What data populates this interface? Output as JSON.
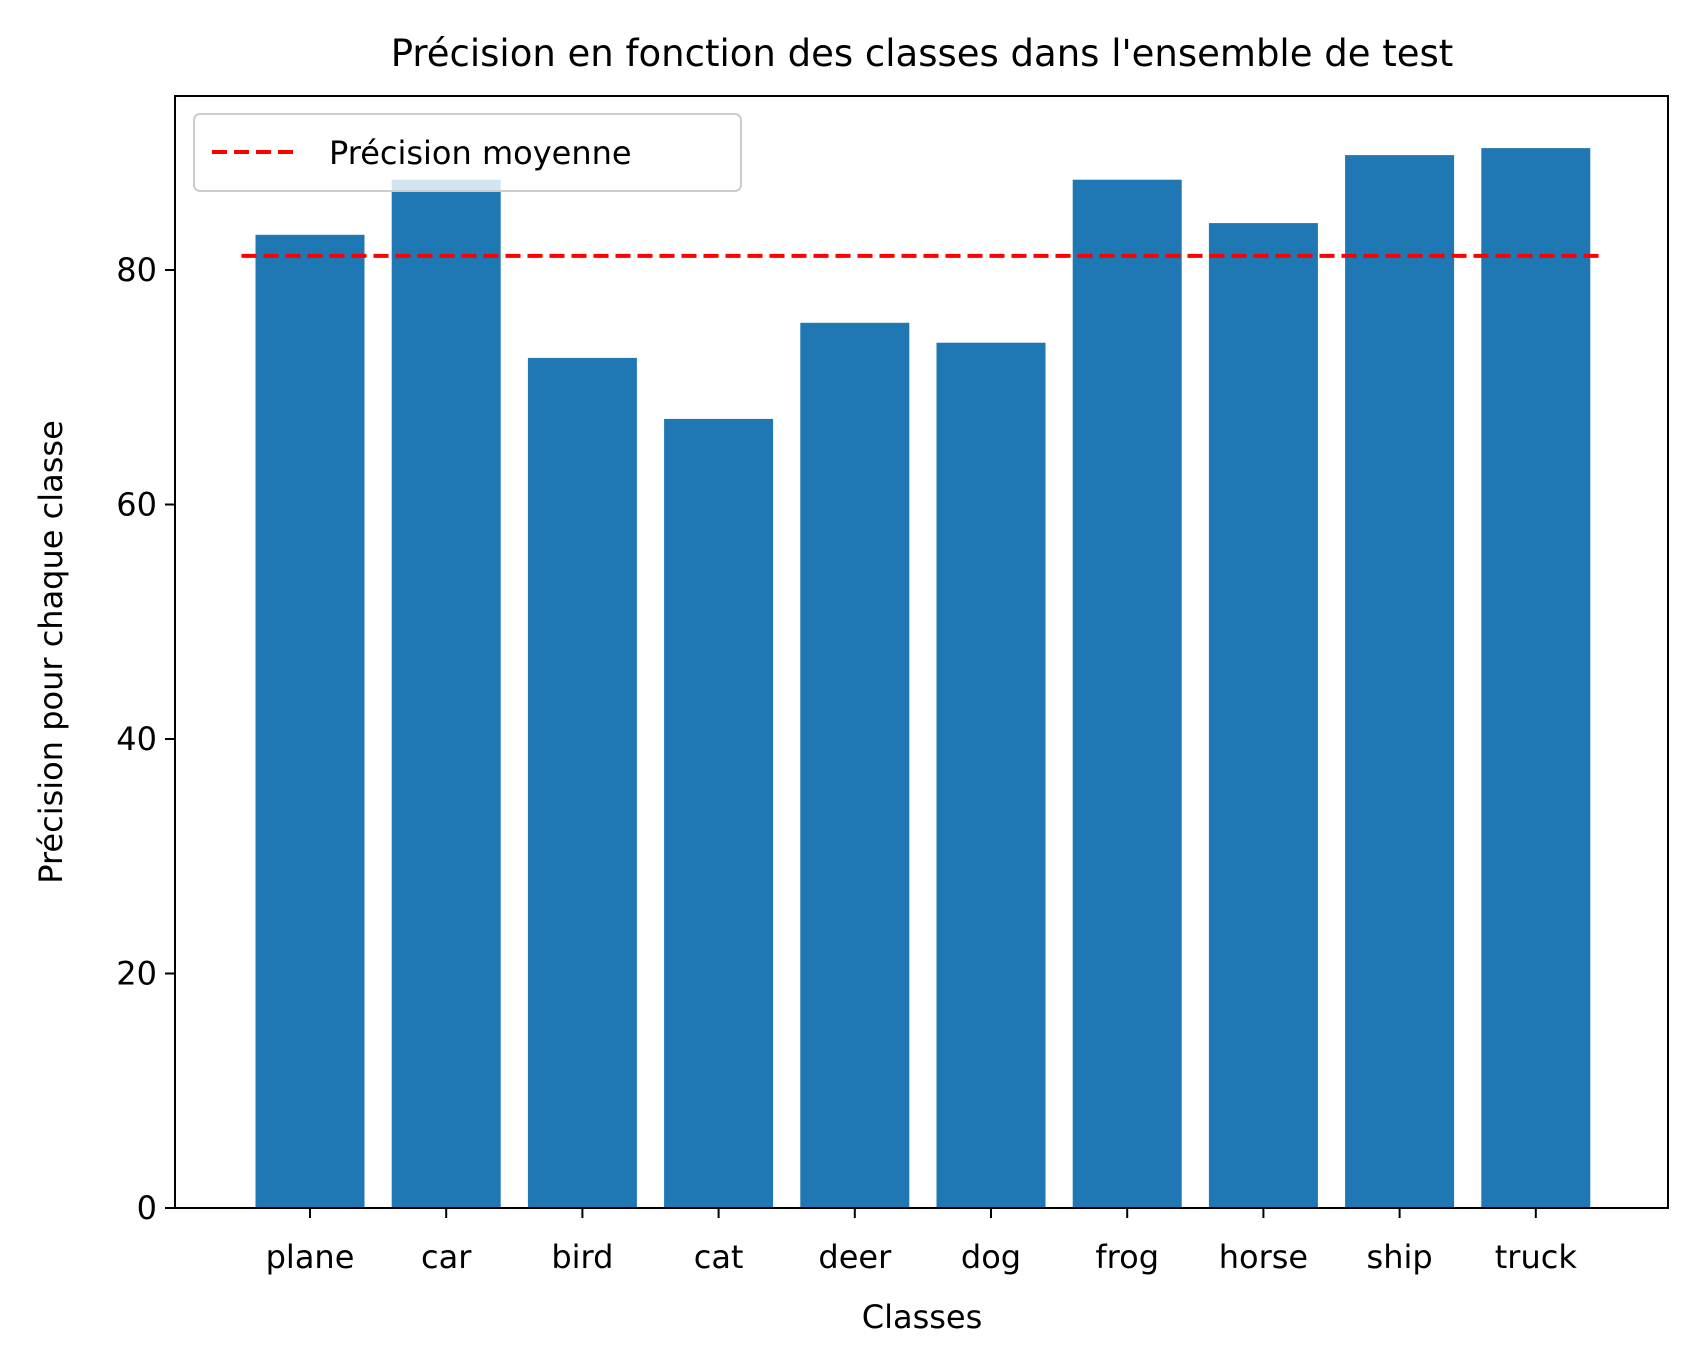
{
  "chart_data": {
    "type": "bar",
    "title": "Précision en fonction des classes dans l'ensemble de test",
    "xlabel": "Classes",
    "ylabel": "Précision pour chaque classe",
    "categories": [
      "plane",
      "car",
      "bird",
      "cat",
      "deer",
      "dog",
      "frog",
      "horse",
      "ship",
      "truck"
    ],
    "values": [
      83.0,
      87.7,
      72.5,
      67.3,
      75.5,
      73.8,
      87.7,
      84.0,
      89.8,
      90.4
    ],
    "ylim": [
      0,
      95
    ],
    "yticks": [
      0,
      20,
      40,
      60,
      80
    ],
    "bar_color": "#1f77b4",
    "mean_line": {
      "label": "Précision moyenne",
      "value": 81.2,
      "color": "#ff0000",
      "style": "dashed"
    },
    "legend_position": "upper-left",
    "grid": false
  }
}
